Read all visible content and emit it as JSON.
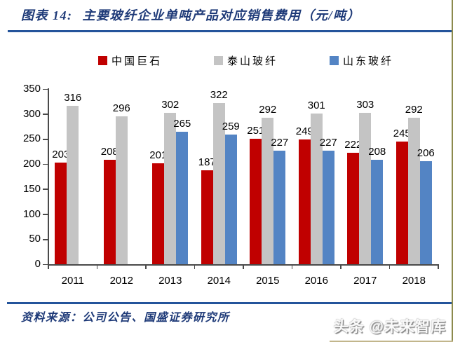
{
  "header": {
    "title_prefix": "图表 14:",
    "title_main": "主要玻纤企业单吨产品对应销售费用（元/吨）"
  },
  "footer": {
    "source": "资料来源：公司公告、国盛证券研究所",
    "watermark": "头条 @未来智库"
  },
  "colors": {
    "accent_blue": "#24549B",
    "title_text": "#1E3A78",
    "axis": "#4A4A4A",
    "series_red": "#C00000",
    "series_gray": "#C4C4C4",
    "series_blue": "#5384C4",
    "frame_right": "#8C8A4D"
  },
  "chart_data": {
    "type": "bar",
    "title": "主要玻纤企业单吨产品对应销售费用（元/吨）",
    "categories": [
      "2011",
      "2012",
      "2013",
      "2014",
      "2015",
      "2016",
      "2017",
      "2018"
    ],
    "series": [
      {
        "name": "中国巨石",
        "color": "#C00000",
        "values": [
          203,
          208,
          201,
          187,
          251,
          249,
          222,
          245
        ]
      },
      {
        "name": "泰山玻纤",
        "color": "#C4C4C4",
        "values": [
          316,
          296,
          302,
          322,
          292,
          301,
          303,
          292
        ]
      },
      {
        "name": "山东玻纤",
        "color": "#5384C4",
        "values": [
          null,
          null,
          265,
          259,
          227,
          227,
          208,
          206
        ]
      }
    ],
    "ylim": [
      0,
      350
    ],
    "yticks": [
      0,
      50,
      100,
      150,
      200,
      250,
      300,
      350
    ],
    "grid": false,
    "legend_position": "top",
    "value_labels": true
  }
}
